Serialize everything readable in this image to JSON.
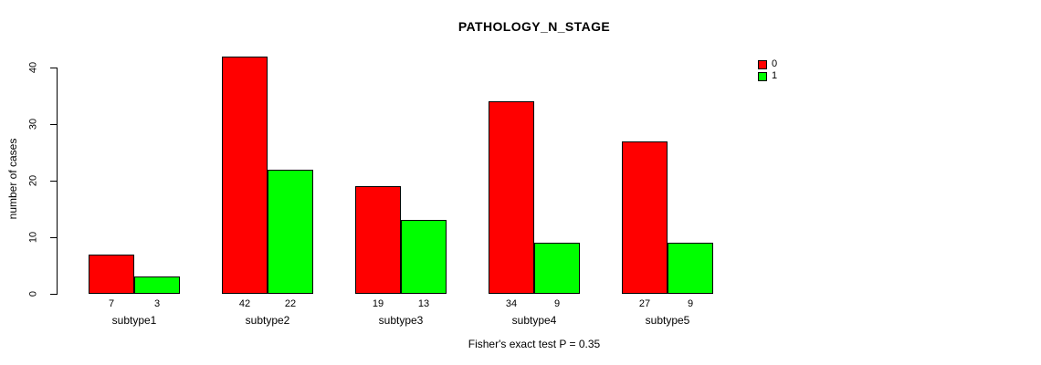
{
  "chart_data": {
    "type": "bar",
    "title": "PATHOLOGY_N_STAGE",
    "ylabel": "number of cases",
    "xlabel": "",
    "categories": [
      "subtype1",
      "subtype2",
      "subtype3",
      "subtype4",
      "subtype5"
    ],
    "series": [
      {
        "name": "0",
        "color": "#FF0000",
        "values": [
          7,
          42,
          19,
          34,
          27
        ]
      },
      {
        "name": "1",
        "color": "#00FF00",
        "values": [
          3,
          22,
          13,
          9,
          9
        ]
      }
    ],
    "ylim": [
      0,
      40
    ],
    "yticks": [
      0,
      10,
      20,
      30,
      40
    ],
    "grid": false,
    "legend_position": "top-right",
    "bar_borders": true,
    "value_labels_under_bars": true,
    "caption": "Fisher's exact test P = 0.35"
  },
  "colors": {
    "background": "#FFFFFF",
    "axis": "#000000",
    "text": "#000000",
    "series_0": "#FF0000",
    "series_1": "#00FF00"
  }
}
